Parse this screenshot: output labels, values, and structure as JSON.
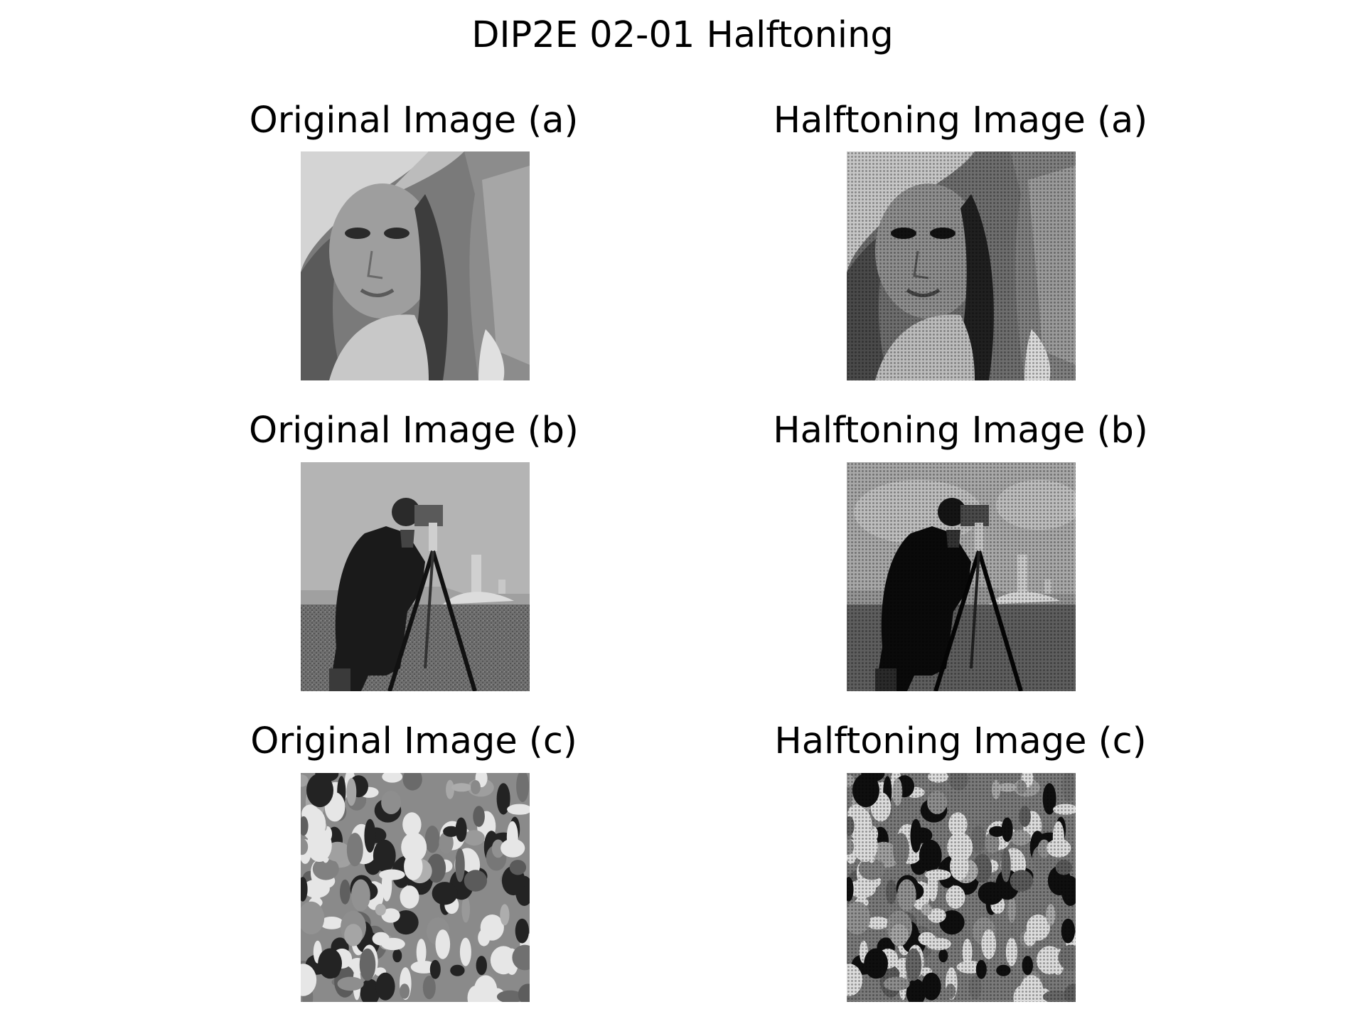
{
  "figure": {
    "title": "DIP2E 02-01 Halftoning"
  },
  "panels": [
    {
      "title": "Original Image (a)",
      "image": "portrait-woman-with-hat",
      "style": "grayscale"
    },
    {
      "title": "Halftoning Image (a)",
      "image": "portrait-woman-with-hat",
      "style": "halftone"
    },
    {
      "title": "Original Image (b)",
      "image": "cameraman",
      "style": "grayscale"
    },
    {
      "title": "Halftoning Image (b)",
      "image": "cameraman",
      "style": "halftone"
    },
    {
      "title": "Original Image (c)",
      "image": "crowd",
      "style": "grayscale"
    },
    {
      "title": "Halftoning Image (c)",
      "image": "crowd",
      "style": "halftone"
    }
  ]
}
